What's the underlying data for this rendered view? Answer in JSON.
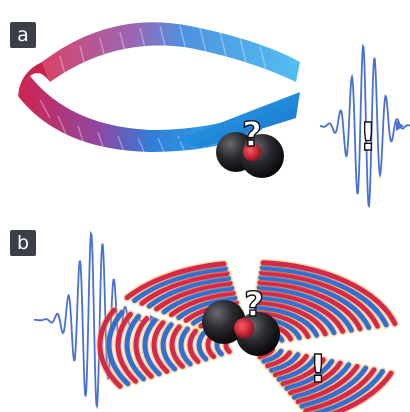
{
  "panels": [
    {
      "label": "a"
    },
    {
      "label": "b"
    }
  ],
  "symbols": {
    "question": "?",
    "exclamation": "!"
  },
  "colors": {
    "red": "#d6284a",
    "blue": "#1e90e6",
    "wave": "#4a6fd6",
    "sphere": "#1e1e22",
    "core": "#c0142c"
  }
}
